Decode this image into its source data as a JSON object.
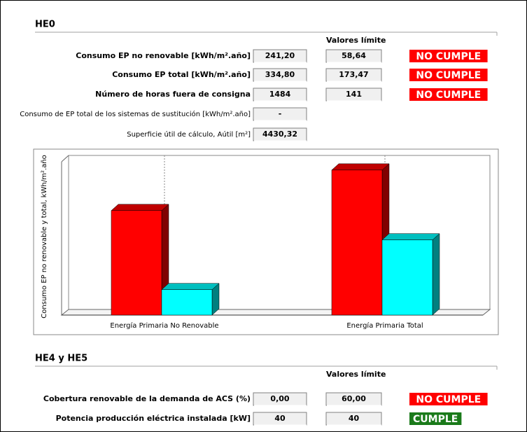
{
  "sections": [
    {
      "title": "HE0",
      "limits_header": "Valores límite",
      "rows": [
        {
          "label": "Consumo EP no renovable [kWh/m².año]",
          "value": "241,20",
          "limit": "58,64",
          "status": "NO CUMPLE",
          "status_color": "#ff0000"
        },
        {
          "label": "Consumo EP total [kWh/m².año]",
          "value": "334,80",
          "limit": "173,47",
          "status": "NO CUMPLE",
          "status_color": "#ff0000"
        },
        {
          "label": "Número de horas fuera de consigna",
          "value": "1484",
          "limit": "141",
          "status": "NO CUMPLE",
          "status_color": "#ff0000"
        },
        {
          "label": "Consumo de EP total de los sistemas de sustitución [kWh/m².año]",
          "value": "-"
        },
        {
          "label": "Superficie útil de cálculo, Aútil [m²]",
          "value": "4430,32"
        }
      ]
    },
    {
      "title": "HE4 y HE5",
      "limits_header": "Valores límite",
      "rows": [
        {
          "label": "Cobertura renovable de la demanda de ACS (%)",
          "value": "0,00",
          "limit": "60,00",
          "status": "NO CUMPLE",
          "status_color": "#ff0000"
        },
        {
          "label": "Potencia producción eléctrica instalada  [kW]",
          "value": "40",
          "limit": "40",
          "status": "CUMPLE",
          "status_color": "#1a7a1a"
        }
      ]
    }
  ],
  "chart_data": {
    "type": "bar",
    "y_label": "Consumo EP no renovable y total, kWh/m².año",
    "categories": [
      "Energía Primaria No Renovable",
      "Energía Primaria Total"
    ],
    "series": [
      {
        "color": "#ff0000",
        "values": [
          241.2,
          334.8
        ]
      },
      {
        "color": "#00ffff",
        "values": [
          58.64,
          173.47
        ]
      }
    ],
    "ylim": [
      0,
      375
    ],
    "x_grid": true
  }
}
